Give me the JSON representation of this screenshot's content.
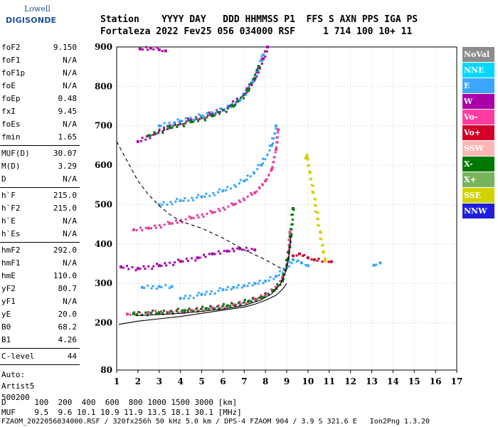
{
  "logo": {
    "brand": "Lowell",
    "name": "DIGISONDE"
  },
  "header": {
    "line1": "Station    YYYY DAY   DDD HHMMSS P1  FFS S AXN PPS IGA PS",
    "line2": "Fortaleza 2022 Fev25 056 034000 RSF     1 714 100 10+ 11"
  },
  "params": [
    {
      "group": [
        {
          "k": "foF2",
          "v": "9.150"
        },
        {
          "k": "foF1",
          "v": "N/A"
        },
        {
          "k": "foF1p",
          "v": "N/A"
        },
        {
          "k": "foE",
          "v": "N/A"
        },
        {
          "k": "foEp",
          "v": "0.48"
        },
        {
          "k": "fxI",
          "v": "9.45"
        },
        {
          "k": "foEs",
          "v": "N/A"
        },
        {
          "k": "fmin",
          "v": "1.65"
        }
      ]
    },
    {
      "group": [
        {
          "k": "MUF(D)",
          "v": "30.07"
        },
        {
          "k": "M(D)",
          "v": "3.29"
        },
        {
          "k": "D",
          "v": "N/A"
        }
      ]
    },
    {
      "group": [
        {
          "k": "h`F",
          "v": "215.0"
        },
        {
          "k": "h`F2",
          "v": "215.0"
        },
        {
          "k": "h`E",
          "v": "N/A"
        },
        {
          "k": "h`Es",
          "v": "N/A"
        }
      ]
    },
    {
      "group": [
        {
          "k": "hmF2",
          "v": "292.0"
        },
        {
          "k": "hmF1",
          "v": "N/A"
        },
        {
          "k": "hmE",
          "v": "110.0"
        },
        {
          "k": "yF2",
          "v": "80.7"
        },
        {
          "k": "yF1",
          "v": "N/A"
        },
        {
          "k": "yE",
          "v": "20.0"
        },
        {
          "k": "B0",
          "v": "68.2"
        },
        {
          "k": "B1",
          "v": "4.26"
        }
      ]
    },
    {
      "group": [
        {
          "k": "C-level",
          "v": "44"
        }
      ]
    }
  ],
  "auto": [
    "Auto:",
    "Artist5",
    "500200"
  ],
  "legend": [
    {
      "label": "NoVal",
      "color": "#8c8c8c"
    },
    {
      "label": "NNE",
      "color": "#00d8ff"
    },
    {
      "label": "E",
      "color": "#3aa6ff"
    },
    {
      "label": "W",
      "color": "#a800a8"
    },
    {
      "label": "Vo-",
      "color": "#ff3ca0"
    },
    {
      "label": "Vo+",
      "color": "#d00028"
    },
    {
      "label": "SSW",
      "color": "#ffb4b4"
    },
    {
      "label": "X-",
      "color": "#007800"
    },
    {
      "label": "X+",
      "color": "#78b45a"
    },
    {
      "label": "SSE",
      "color": "#d2d200"
    },
    {
      "label": "NNW",
      "color": "#1e1edc"
    }
  ],
  "bottom": {
    "line1": "D      100  200  400  600  800 1000 1500 3000 [km]",
    "line2": "MUF    9.5  9.6 10.1 10.9 11.9 13.5 18.1 30.1 [MHz]",
    "line3": "FZAOM_2022056034000.RSF / 320fx256h 50 kHz 5.0 km / DPS-4 FZAOM 904 / 3.9 S 321.6 E   Ion2Png 1.3.20"
  },
  "chart_data": {
    "type": "scatter",
    "xlim": [
      1,
      17
    ],
    "ylim": [
      80,
      900
    ],
    "xticks": [
      1,
      2,
      3,
      4,
      5,
      6,
      7,
      8,
      9,
      10,
      11,
      12,
      13,
      14,
      15,
      16,
      17
    ],
    "yticks": [
      80,
      200,
      300,
      400,
      500,
      600,
      700,
      800,
      900
    ],
    "grid": true,
    "series": [
      {
        "color": "#e63c9a",
        "points": [
          [
            1.5,
            222
          ],
          [
            2.5,
            226
          ],
          [
            3.5,
            228
          ],
          [
            4.5,
            232
          ],
          [
            5.5,
            238
          ],
          [
            6.5,
            246
          ],
          [
            7.5,
            260
          ],
          [
            8.0,
            272
          ],
          [
            8.5,
            290
          ],
          [
            8.8,
            315
          ],
          [
            9.0,
            345
          ],
          [
            9.1,
            380
          ],
          [
            9.15,
            430
          ]
        ]
      },
      {
        "color": "#007800",
        "points": [
          [
            1.8,
            223
          ],
          [
            3.0,
            226
          ],
          [
            4.2,
            231
          ],
          [
            5.2,
            236
          ],
          [
            6.2,
            243
          ],
          [
            7.2,
            254
          ],
          [
            7.8,
            264
          ],
          [
            8.4,
            282
          ],
          [
            8.8,
            306
          ],
          [
            9.05,
            360
          ],
          [
            9.2,
            420
          ],
          [
            9.3,
            490
          ]
        ]
      },
      {
        "color": "#3aa6ff",
        "points": [
          [
            4.0,
            262
          ],
          [
            5.0,
            272
          ],
          [
            6.0,
            284
          ],
          [
            6.5,
            290
          ],
          [
            7.0,
            294
          ],
          [
            7.5,
            300
          ],
          [
            8.0,
            306
          ],
          [
            8.5,
            318
          ],
          [
            9.0,
            340
          ],
          [
            9.3,
            360
          ],
          [
            9.7,
            352
          ],
          [
            10.0,
            345
          ]
        ]
      },
      {
        "color": "#3aa6ff",
        "points": [
          [
            2.2,
            290
          ],
          [
            3.0,
            292
          ],
          [
            3.6,
            292
          ]
        ]
      },
      {
        "color": "#a800a8",
        "points": [
          [
            1.2,
            342
          ],
          [
            2.0,
            338
          ],
          [
            3.0,
            345
          ],
          [
            4.0,
            356
          ],
          [
            4.8,
            365
          ],
          [
            5.5,
            375
          ],
          [
            6.2,
            382
          ],
          [
            6.8,
            388
          ],
          [
            7.5,
            385
          ]
        ]
      },
      {
        "color": "#e63c9a",
        "points": [
          [
            1.8,
            436
          ],
          [
            2.5,
            440
          ],
          [
            3.5,
            452
          ],
          [
            4.5,
            466
          ],
          [
            5.5,
            480
          ],
          [
            6.5,
            500
          ],
          [
            7.5,
            530
          ],
          [
            8.0,
            560
          ],
          [
            8.3,
            590
          ],
          [
            8.5,
            640
          ],
          [
            8.6,
            690
          ]
        ]
      },
      {
        "color": "#3aa6ff",
        "points": [
          [
            3.0,
            500
          ],
          [
            4.0,
            510
          ],
          [
            5.0,
            520
          ],
          [
            6.0,
            535
          ],
          [
            7.0,
            560
          ],
          [
            7.8,
            600
          ],
          [
            8.3,
            650
          ],
          [
            8.5,
            700
          ]
        ]
      },
      {
        "color": "#a800a8",
        "points": [
          [
            2.0,
            660
          ],
          [
            2.8,
            680
          ],
          [
            3.5,
            700
          ],
          [
            4.5,
            715
          ],
          [
            5.5,
            730
          ],
          [
            6.3,
            750
          ],
          [
            7.0,
            780
          ],
          [
            7.5,
            820
          ],
          [
            7.9,
            870
          ],
          [
            8.1,
            900
          ]
        ]
      },
      {
        "color": "#3aa6ff",
        "points": [
          [
            3.0,
            700
          ],
          [
            4.0,
            712
          ],
          [
            5.0,
            725
          ],
          [
            6.0,
            740
          ],
          [
            6.8,
            765
          ],
          [
            7.4,
            810
          ],
          [
            7.9,
            880
          ]
        ]
      },
      {
        "color": "#007800",
        "points": [
          [
            2.5,
            675
          ],
          [
            3.5,
            695
          ],
          [
            4.5,
            710
          ],
          [
            5.5,
            725
          ],
          [
            6.5,
            750
          ],
          [
            7.2,
            790
          ],
          [
            7.7,
            850
          ]
        ]
      },
      {
        "color": "#a800a8",
        "points": [
          [
            2.1,
            895
          ],
          [
            2.6,
            897
          ],
          [
            3.0,
            893
          ],
          [
            3.3,
            890
          ]
        ]
      },
      {
        "color": "#d00028",
        "points": [
          [
            9.3,
            370
          ],
          [
            9.6,
            375
          ],
          [
            10.0,
            365
          ],
          [
            10.3,
            360
          ],
          [
            10.8,
            358
          ],
          [
            11.1,
            355
          ]
        ]
      },
      {
        "color": "#d2d200",
        "points": [
          [
            9.9,
            618
          ],
          [
            9.95,
            625
          ],
          [
            10.8,
            358
          ]
        ]
      },
      {
        "color": "#3aa6ff",
        "points": [
          [
            13.1,
            346
          ],
          [
            13.4,
            352
          ]
        ]
      }
    ],
    "curves": [
      {
        "name": "dashed",
        "style": "dashed",
        "points": [
          [
            1.0,
            660
          ],
          [
            1.5,
            610
          ],
          [
            2.0,
            560
          ],
          [
            2.5,
            525
          ],
          [
            3.0,
            497
          ],
          [
            3.5,
            475
          ],
          [
            4.0,
            458
          ],
          [
            5.0,
            440
          ],
          [
            6.0,
            415
          ],
          [
            7.0,
            385
          ],
          [
            8.0,
            360
          ],
          [
            8.5,
            345
          ],
          [
            9.0,
            330
          ]
        ]
      },
      {
        "name": "profile",
        "style": "solid",
        "points": [
          [
            1.1,
            196
          ],
          [
            2.0,
            204
          ],
          [
            3.0,
            210
          ],
          [
            4.0,
            216
          ],
          [
            5.0,
            224
          ],
          [
            6.0,
            232
          ],
          [
            7.0,
            240
          ],
          [
            7.5,
            247
          ],
          [
            8.0,
            257
          ],
          [
            8.5,
            270
          ],
          [
            8.8,
            285
          ],
          [
            9.0,
            300
          ]
        ]
      },
      {
        "name": "trace",
        "style": "solid",
        "points": [
          [
            1.9,
            218
          ],
          [
            3.0,
            221
          ],
          [
            4.0,
            224
          ],
          [
            5.0,
            229
          ],
          [
            6.0,
            235
          ],
          [
            7.0,
            244
          ],
          [
            7.8,
            258
          ],
          [
            8.3,
            274
          ],
          [
            8.7,
            298
          ],
          [
            8.95,
            330
          ],
          [
            9.1,
            370
          ],
          [
            9.2,
            420
          ]
        ]
      }
    ]
  }
}
